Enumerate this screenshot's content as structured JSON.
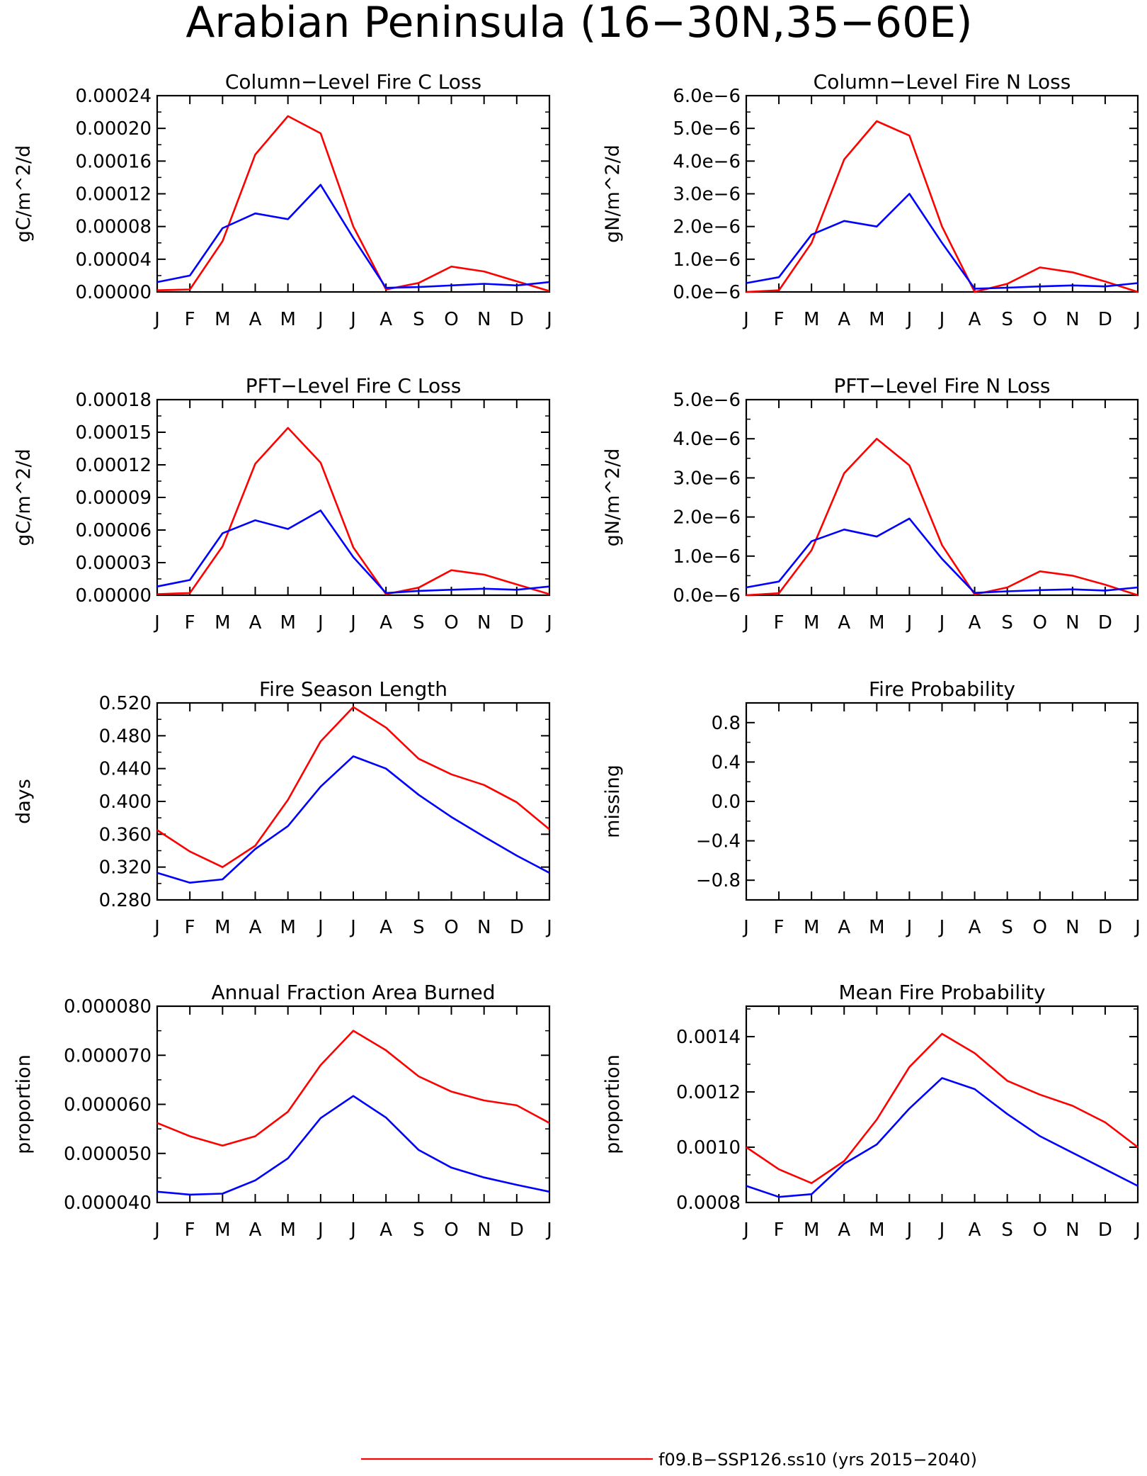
{
  "title": "Arabian Peninsula (16−30N,35−60E)",
  "months": [
    "J",
    "F",
    "M",
    "A",
    "M",
    "J",
    "J",
    "A",
    "S",
    "O",
    "N",
    "D",
    "J"
  ],
  "colors": {
    "red_series": "#ff0000",
    "blue_series": "#0000ff"
  },
  "legend": {
    "label": "f09.B−SSP126.ss10 (yrs 2015−2040)"
  },
  "chart_data": [
    {
      "type": "line",
      "title": "Column−Level Fire C Loss",
      "ylabel": "gC/m^2/d",
      "ylim": [
        0,
        0.00024
      ],
      "yticks": [
        0,
        4e-05,
        8e-05,
        0.00012,
        0.00016,
        0.0002,
        0.00024
      ],
      "ytick_labels": [
        "0.00000",
        "0.00004",
        "0.00008",
        "0.00012",
        "0.00016",
        "0.00020",
        "0.00024"
      ],
      "series": [
        {
          "color": "red",
          "values": [
            2e-06,
            3e-06,
            6.2e-05,
            0.000168,
            0.000215,
            0.000194,
            8e-05,
            3e-06,
            1.1e-05,
            3.1e-05,
            2.5e-05,
            1.3e-05,
            1e-06
          ]
        },
        {
          "color": "blue",
          "values": [
            1.2e-05,
            2e-05,
            7.8e-05,
            9.6e-05,
            8.9e-05,
            0.000131,
            6.6e-05,
            5e-06,
            6e-06,
            8e-06,
            1e-05,
            8e-06,
            1.2e-05
          ]
        }
      ]
    },
    {
      "type": "line",
      "title": "Column−Level Fire N Loss",
      "ylabel": "gN/m^2/d",
      "ylim": [
        0,
        6e-06
      ],
      "yticks": [
        0,
        1e-06,
        2e-06,
        3e-06,
        4e-06,
        5e-06,
        6e-06
      ],
      "ytick_labels": [
        "0.0e−6",
        "1.0e−6",
        "2.0e−6",
        "3.0e−6",
        "4.0e−6",
        "5.0e−6",
        "6.0e−6"
      ],
      "series": [
        {
          "color": "red",
          "values": [
            0.0,
            5e-08,
            1.5e-06,
            4.05e-06,
            5.22e-06,
            4.78e-06,
            2e-06,
            0.0,
            2.5e-07,
            7.5e-07,
            6e-07,
            3.2e-07,
            0.0
          ]
        },
        {
          "color": "blue",
          "values": [
            2.7e-07,
            4.5e-07,
            1.75e-06,
            2.17e-06,
            2e-06,
            3e-06,
            1.5e-06,
            1e-07,
            1.3e-07,
            1.7e-07,
            2e-07,
            1.7e-07,
            2.7e-07
          ]
        }
      ]
    },
    {
      "type": "line",
      "title": "PFT−Level Fire C Loss",
      "ylabel": "gC/m^2/d",
      "ylim": [
        0,
        0.00018
      ],
      "yticks": [
        0,
        3e-05,
        6e-05,
        9e-05,
        0.00012,
        0.00015,
        0.00018
      ],
      "ytick_labels": [
        "0.00000",
        "0.00003",
        "0.00006",
        "0.00009",
        "0.00012",
        "0.00015",
        "0.00018"
      ],
      "series": [
        {
          "color": "red",
          "values": [
            1e-06,
            2e-06,
            4.5e-05,
            0.000121,
            0.000154,
            0.000122,
            4.4e-05,
            1e-06,
            7e-06,
            2.3e-05,
            1.9e-05,
            1e-05,
            1e-06
          ]
        },
        {
          "color": "blue",
          "values": [
            8e-06,
            1.4e-05,
            5.7e-05,
            6.9e-05,
            6.1e-05,
            7.8e-05,
            3.5e-05,
            2e-06,
            4e-06,
            5e-06,
            6e-06,
            5e-06,
            8e-06
          ]
        }
      ]
    },
    {
      "type": "line",
      "title": "PFT−Level Fire N Loss",
      "ylabel": "gN/m^2/d",
      "ylim": [
        0,
        5e-06
      ],
      "yticks": [
        0,
        1e-06,
        2e-06,
        3e-06,
        4e-06,
        5e-06
      ],
      "ytick_labels": [
        "0.0e−6",
        "1.0e−6",
        "2.0e−6",
        "3.0e−6",
        "4.0e−6",
        "5.0e−6"
      ],
      "series": [
        {
          "color": "red",
          "values": [
            0.0,
            5e-08,
            1.15e-06,
            3.12e-06,
            4e-06,
            3.32e-06,
            1.28e-06,
            2e-08,
            2e-07,
            6.1e-07,
            5e-07,
            2.7e-07,
            0.0
          ]
        },
        {
          "color": "blue",
          "values": [
            2e-07,
            3.5e-07,
            1.38e-06,
            1.68e-06,
            1.5e-06,
            1.96e-06,
            9.3e-07,
            6e-08,
            1e-07,
            1.3e-07,
            1.5e-07,
            1.2e-07,
            2e-07
          ]
        }
      ]
    },
    {
      "type": "line",
      "title": "Fire Season Length",
      "ylabel": "days",
      "ylim": [
        0.28,
        0.52
      ],
      "yticks": [
        0.28,
        0.32,
        0.36,
        0.4,
        0.44,
        0.48,
        0.52
      ],
      "ytick_labels": [
        "0.280",
        "0.320",
        "0.360",
        "0.400",
        "0.440",
        "0.480",
        "0.520"
      ],
      "series": [
        {
          "color": "red",
          "values": [
            0.365,
            0.339,
            0.32,
            0.346,
            0.402,
            0.473,
            0.515,
            0.49,
            0.452,
            0.433,
            0.42,
            0.399,
            0.366
          ]
        },
        {
          "color": "blue",
          "values": [
            0.313,
            0.301,
            0.305,
            0.342,
            0.37,
            0.418,
            0.455,
            0.44,
            0.408,
            0.381,
            0.357,
            0.334,
            0.313
          ]
        }
      ]
    },
    {
      "type": "line",
      "title": "Fire Probability",
      "ylabel": "missing",
      "ylim": [
        -1.0,
        1.0
      ],
      "yticks": [
        -0.8,
        -0.4,
        0.0,
        0.4,
        0.8
      ],
      "ytick_labels": [
        "−0.8",
        "−0.4",
        "0.0",
        "0.4",
        "0.8"
      ],
      "series": []
    },
    {
      "type": "line",
      "title": "Annual Fraction Area Burned",
      "ylabel": "proportion",
      "ylim": [
        4e-05,
        8e-05
      ],
      "yticks": [
        4e-05,
        5e-05,
        6e-05,
        7e-05,
        8e-05
      ],
      "ytick_labels": [
        "0.000040",
        "0.000050",
        "0.000060",
        "0.000070",
        "0.000080"
      ],
      "series": [
        {
          "color": "red",
          "values": [
            5.62e-05,
            5.35e-05,
            5.16e-05,
            5.35e-05,
            5.85e-05,
            6.8e-05,
            7.5e-05,
            7.1e-05,
            6.57e-05,
            6.26e-05,
            6.08e-05,
            5.98e-05,
            5.62e-05
          ]
        },
        {
          "color": "blue",
          "values": [
            4.22e-05,
            4.16e-05,
            4.18e-05,
            4.45e-05,
            4.9e-05,
            5.72e-05,
            6.17e-05,
            5.73e-05,
            5.07e-05,
            4.71e-05,
            4.51e-05,
            4.36e-05,
            4.22e-05
          ]
        }
      ]
    },
    {
      "type": "line",
      "title": "Mean Fire Probability",
      "ylabel": "proportion",
      "ylim": [
        0.0008,
        0.00151
      ],
      "yticks": [
        0.0008,
        0.001,
        0.0012,
        0.0014
      ],
      "ytick_labels": [
        "0.0008",
        "0.0010",
        "0.0012",
        "0.0014"
      ],
      "series": [
        {
          "color": "red",
          "values": [
            0.001,
            0.00092,
            0.00087,
            0.00095,
            0.0011,
            0.00129,
            0.00141,
            0.00134,
            0.00124,
            0.00119,
            0.00115,
            0.00109,
            0.001
          ]
        },
        {
          "color": "blue",
          "values": [
            0.00086,
            0.00082,
            0.00083,
            0.00094,
            0.00101,
            0.00114,
            0.00125,
            0.00121,
            0.00112,
            0.00104,
            0.00098,
            0.00092,
            0.00086
          ]
        }
      ]
    }
  ]
}
